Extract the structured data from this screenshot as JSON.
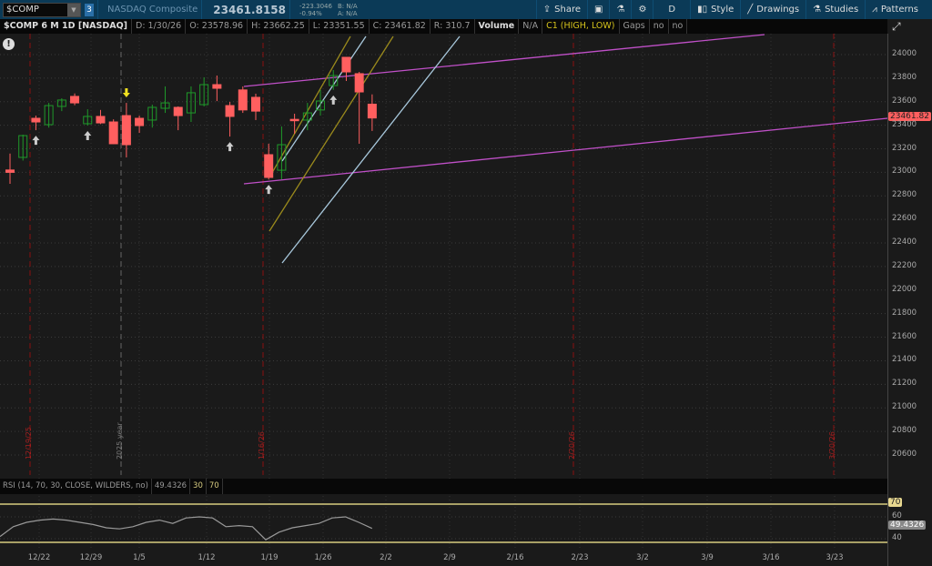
{
  "toolbar": {
    "symbol": "$COMP",
    "link_number": "3",
    "name": "NASDAQ Composite",
    "last": "23461.8158",
    "change": "-223.3046",
    "change_pct": "-0.94%",
    "bid": "B: N/A",
    "ask": "A: N/A",
    "buttons": [
      {
        "label": "Share",
        "icon": "share-icon"
      },
      {
        "label": "",
        "icon": "alert-icon"
      },
      {
        "label": "",
        "icon": "flask-icon"
      },
      {
        "label": "",
        "icon": "gear-icon"
      },
      {
        "label": "D",
        "icon": ""
      },
      {
        "label": "Style",
        "icon": "candle-style-icon"
      },
      {
        "label": "Drawings",
        "icon": "pencil-line-icon"
      },
      {
        "label": "Studies",
        "icon": "flask-icon"
      },
      {
        "label": "Patterns",
        "icon": "patterns-icon"
      }
    ]
  },
  "infobar": {
    "title": "$COMP 6 M 1D [NASDAQ]",
    "date": "D: 1/30/26",
    "open": "O: 23578.96",
    "high": "H: 23662.25",
    "low": "L: 23351.55",
    "close": "C: 23461.82",
    "range": "R: 310.7",
    "volume_label": "Volume",
    "volume": "N/A",
    "study": "C1 (HIGH, LOW)",
    "gaps_label": "Gaps",
    "gaps1": "no",
    "gaps2": "no"
  },
  "colors": {
    "up": "#1f9a2a",
    "down": "#ff5f5f",
    "magenta": "#c050c8",
    "gold": "#9a8a1c",
    "lightblue": "#a8c8dc",
    "event_line": "#8a1010"
  },
  "chart_data": {
    "type": "candlestick",
    "symbol": "$COMP",
    "ylim": [
      20400,
      24150
    ],
    "price_ticks": [
      "24000",
      "23800",
      "23600",
      "23400",
      "23200",
      "23000",
      "22800",
      "22600",
      "22400",
      "22200",
      "22000",
      "21800",
      "21600",
      "21400",
      "21200",
      "21000",
      "20800",
      "20600"
    ],
    "current_price_label": "23461.82",
    "x_ticks": [
      "12/22",
      "12/29",
      "1/5",
      "1/12",
      "1/19",
      "1/26",
      "2/2",
      "2/9",
      "2/16",
      "2/23",
      "3/2",
      "3/9",
      "3/16",
      "3/23"
    ],
    "event_labels": [
      "12/19/25",
      "2025 year",
      "1/16/26",
      "2/20/26",
      "3/20/26"
    ],
    "candles": [
      [
        23020,
        23160,
        22903,
        23000
      ],
      [
        23127,
        23320,
        23100,
        23312
      ],
      [
        23459,
        23482,
        23358,
        23428
      ],
      [
        23405,
        23590,
        23380,
        23567
      ],
      [
        23560,
        23629,
        23520,
        23614
      ],
      [
        23645,
        23670,
        23570,
        23590
      ],
      [
        23413,
        23536,
        23397,
        23475
      ],
      [
        23475,
        23530,
        23410,
        23420
      ],
      [
        23428,
        23450,
        23240,
        23243
      ],
      [
        23482,
        23590,
        23127,
        23235
      ],
      [
        23459,
        23482,
        23335,
        23397
      ],
      [
        23444,
        23575,
        23380,
        23552
      ],
      [
        23544,
        23730,
        23505,
        23590
      ],
      [
        23552,
        23560,
        23358,
        23482
      ],
      [
        23505,
        23730,
        23428,
        23676
      ],
      [
        23575,
        23807,
        23560,
        23745
      ],
      [
        23745,
        23822,
        23605,
        23714
      ],
      [
        23567,
        23598,
        23304,
        23475
      ],
      [
        23700,
        23730,
        23505,
        23530
      ],
      [
        23637,
        23668,
        23444,
        23520
      ],
      [
        23150,
        23243,
        22940,
        22957
      ],
      [
        23018,
        23390,
        22940,
        23235
      ],
      [
        23450,
        23498,
        23328,
        23440
      ],
      [
        23444,
        23590,
        23358,
        23505
      ],
      [
        23530,
        23700,
        23482,
        23606
      ],
      [
        23737,
        23869,
        23700,
        23822
      ],
      [
        23977,
        23977,
        23776,
        23853
      ],
      [
        23838,
        23853,
        23243,
        23683
      ],
      [
        23578.96,
        23662.25,
        23351.55,
        23461.82
      ]
    ],
    "up_arrows_at": [
      2,
      6,
      17,
      20,
      25
    ],
    "down_arrows_at": [
      9
    ]
  },
  "rsi": {
    "label": "RSI (14, 70, 30, CLOSE, WILDERS, no)",
    "value": "49.4326",
    "lower": "30",
    "upper": "70",
    "ticks": [
      "60",
      "40"
    ],
    "overbought_tag": "70",
    "value_tag": "49.4326",
    "values": [
      42,
      51,
      55,
      57,
      58,
      57,
      55,
      53,
      50,
      49,
      51,
      55,
      57,
      54,
      59,
      60,
      59,
      51,
      52,
      51,
      39,
      46,
      50,
      52,
      54,
      59,
      60,
      55,
      49.43
    ]
  }
}
